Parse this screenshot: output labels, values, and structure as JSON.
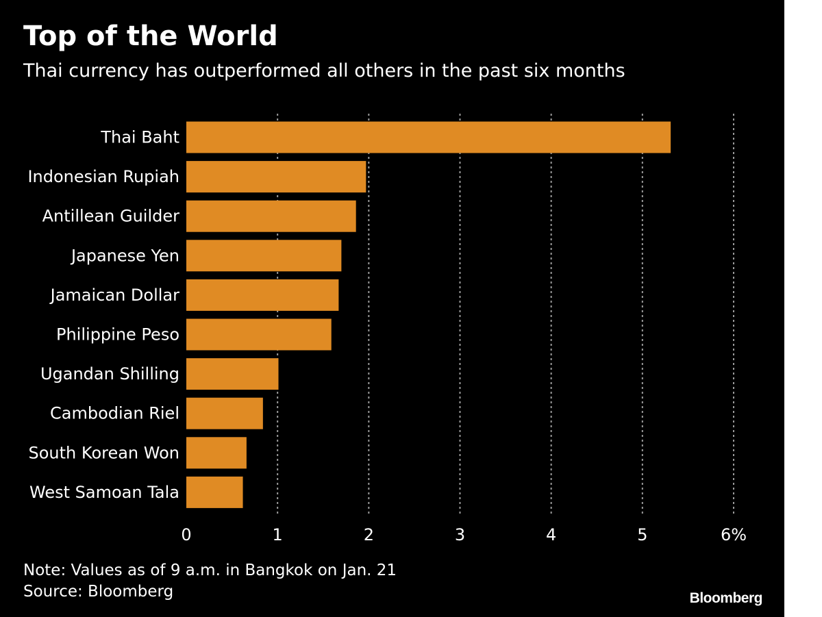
{
  "chart_data": {
    "type": "bar",
    "orientation": "horizontal",
    "title": "Top of the World",
    "subtitle": "Thai currency has outperformed all others in the past six months",
    "categories": [
      "Thai Baht",
      "Indonesian Rupiah",
      "Antillean Guilder",
      "Japanese Yen",
      "Jamaican Dollar",
      "Philippine Peso",
      "Ugandan Shilling",
      "Cambodian Riel",
      "South Korean Won",
      "West Samoan Tala"
    ],
    "values": [
      5.31,
      1.97,
      1.86,
      1.7,
      1.67,
      1.59,
      1.01,
      0.84,
      0.66,
      0.62
    ],
    "xlim": [
      0,
      6
    ],
    "x_ticks": [
      0,
      1,
      2,
      3,
      4,
      5,
      6
    ],
    "x_tick_labels": [
      "0",
      "1",
      "2",
      "3",
      "4",
      "5",
      "6%"
    ],
    "grid": "vertical dotted",
    "bar_color": "#e08b24",
    "background_color": "#000000",
    "note": "Note: Values as of 9 a.m. in Bangkok on Jan. 21",
    "source": "Source: Bloomberg"
  },
  "brand": "Bloomberg"
}
